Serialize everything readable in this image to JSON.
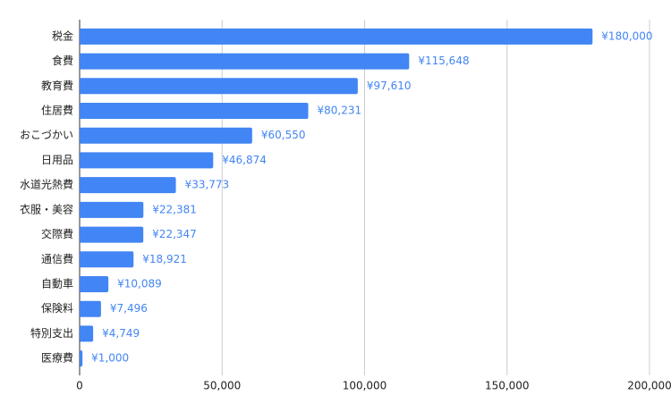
{
  "chart_data": {
    "type": "bar",
    "orientation": "horizontal",
    "categories": [
      "税金",
      "食費",
      "教育費",
      "住居費",
      "おこづかい",
      "日用品",
      "水道光熱費",
      "衣服・美容",
      "交際費",
      "通信費",
      "自動車",
      "保険料",
      "特別支出",
      "医療費"
    ],
    "values": [
      180000,
      115648,
      97610,
      80231,
      60550,
      46874,
      33773,
      22381,
      22347,
      18921,
      10089,
      7496,
      4749,
      1000
    ],
    "value_labels": [
      "¥180,000",
      "¥115,648",
      "¥97,610",
      "¥80,231",
      "¥60,550",
      "¥46,874",
      "¥33,773",
      "¥22,381",
      "¥22,347",
      "¥18,921",
      "¥10,089",
      "¥7,496",
      "¥4,749",
      "¥1,000"
    ],
    "color": "#4285f4",
    "xlim": [
      0,
      200000
    ],
    "xticks": [
      0,
      {
        "value": 50000,
        "label": "50,000"
      },
      {
        "value": 100000,
        "label": "100,000"
      },
      {
        "value": 150000,
        "label": "150,000"
      },
      {
        "value": 200000,
        "label": "200,000"
      }
    ],
    "grid": true
  }
}
